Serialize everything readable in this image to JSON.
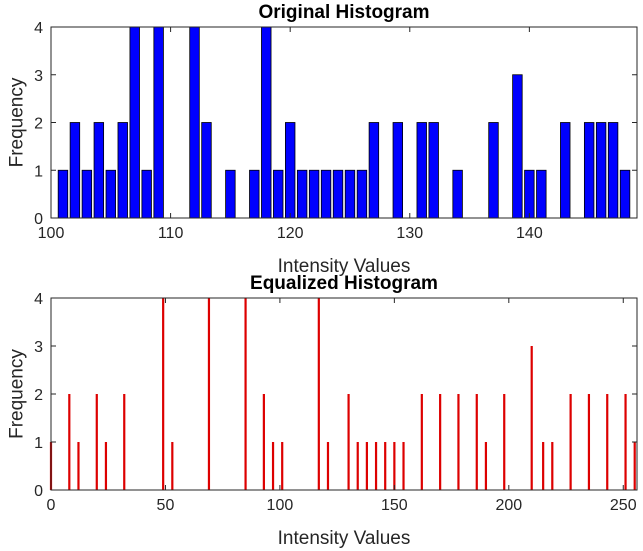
{
  "chart_data": [
    {
      "type": "bar",
      "title": "Original Histogram",
      "xlabel": "Intensity Values",
      "ylabel": "Frequency",
      "xlim": [
        100,
        149
      ],
      "ylim": [
        0,
        4
      ],
      "xticks": [
        100,
        110,
        120,
        130,
        140
      ],
      "yticks": [
        0,
        1,
        2,
        3,
        4
      ],
      "bar_color": "#0000ff",
      "grid": false,
      "x": [
        101,
        102,
        103,
        104,
        105,
        106,
        107,
        108,
        109,
        112,
        113,
        115,
        117,
        118,
        119,
        120,
        121,
        122,
        123,
        124,
        125,
        126,
        127,
        129,
        131,
        132,
        134,
        137,
        139,
        140,
        141,
        143,
        145,
        146,
        147,
        148
      ],
      "values": [
        1,
        2,
        1,
        2,
        1,
        2,
        4,
        1,
        4,
        4,
        2,
        1,
        1,
        4,
        1,
        2,
        1,
        1,
        1,
        1,
        1,
        1,
        2,
        2,
        2,
        2,
        1,
        2,
        3,
        1,
        1,
        2,
        2,
        2,
        2,
        1
      ]
    },
    {
      "type": "bar",
      "title": "Equalized Histogram",
      "xlabel": "Intensity Values",
      "ylabel": "Frequency",
      "xlim": [
        0,
        256
      ],
      "ylim": [
        0,
        4
      ],
      "xticks": [
        0,
        50,
        100,
        150,
        200,
        250
      ],
      "yticks": [
        0,
        1,
        2,
        3,
        4
      ],
      "bar_color": "#dd0000",
      "grid": false,
      "x": [
        0,
        8,
        12,
        20,
        24,
        32,
        49,
        53,
        69,
        85,
        93,
        97,
        101,
        117,
        121,
        130,
        134,
        138,
        142,
        146,
        150,
        154,
        162,
        170,
        178,
        186,
        190,
        198,
        210,
        215,
        219,
        227,
        235,
        243,
        251,
        255
      ],
      "values": [
        1,
        2,
        1,
        2,
        1,
        2,
        4,
        1,
        4,
        4,
        2,
        1,
        1,
        4,
        1,
        2,
        1,
        1,
        1,
        1,
        1,
        1,
        2,
        2,
        2,
        2,
        1,
        2,
        3,
        1,
        1,
        2,
        2,
        2,
        2,
        1
      ]
    }
  ]
}
